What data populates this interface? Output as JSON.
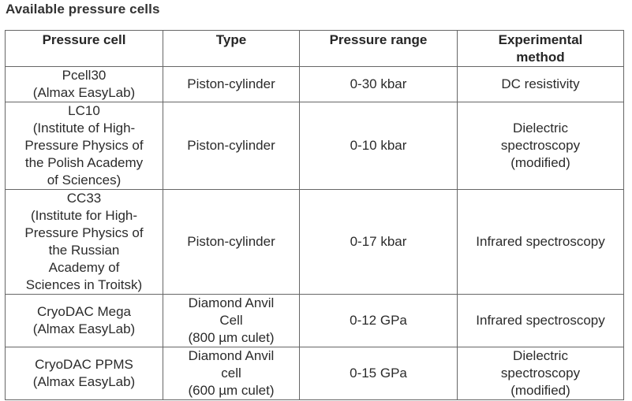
{
  "title": "Available pressure cells",
  "table": {
    "headers": [
      "Pressure cell",
      "Type",
      "Pressure range",
      "Experimental\nmethod"
    ],
    "rows": [
      {
        "cell": "Pcell30\n(Almax EasyLab)",
        "type": "Piston-cylinder",
        "range": "0-30 kbar",
        "method": "DC resistivity"
      },
      {
        "cell": "LC10\n(Institute of High-\nPressure Physics of\nthe Polish Academy\nof Sciences)",
        "type": "Piston-cylinder",
        "range": "0-10 kbar",
        "method": "Dielectric\nspectroscopy\n(modified)"
      },
      {
        "cell": "CC33\n(Institute for High-\nPressure Physics of\nthe Russian\nAcademy of\nSciences in Troitsk)",
        "type": "Piston-cylinder",
        "range": "0-17 kbar",
        "method": "Infrared spectroscopy"
      },
      {
        "cell": "CryoDAC Mega\n(Almax EasyLab)",
        "type": "Diamond Anvil\nCell\n(800 µm culet)",
        "range": "0-12 GPa",
        "method": "Infrared spectroscopy"
      },
      {
        "cell": "CryoDAC PPMS\n(Almax EasyLab)",
        "type": "Diamond Anvil\ncell\n(600 µm culet)",
        "range": "0-15 GPa",
        "method": "Dielectric\nspectroscopy\n(modified)"
      }
    ]
  }
}
